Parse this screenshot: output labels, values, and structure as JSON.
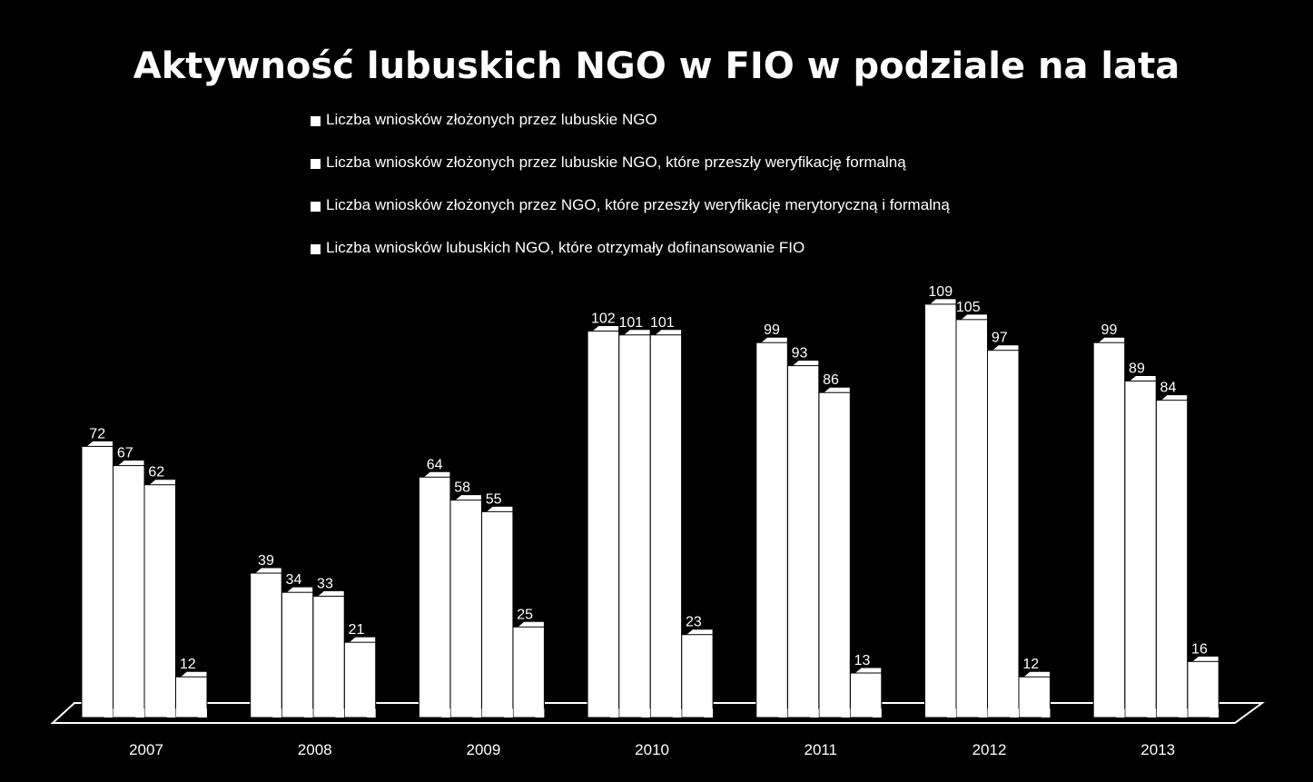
{
  "chart_data": {
    "type": "bar",
    "title": "Aktywność lubuskich NGO w FIO w podziale na lata",
    "categories": [
      "2007",
      "2008",
      "2009",
      "2010",
      "2011",
      "2012",
      "2013"
    ],
    "series": [
      {
        "name": "Liczba wniosków złożonych przez lubuskie NGO",
        "values": [
          72,
          39,
          64,
          102,
          99,
          109,
          99
        ]
      },
      {
        "name": "Liczba wniosków złożonych przez lubuskie NGO, które przeszły weryfikację formalną",
        "values": [
          67,
          34,
          58,
          101,
          93,
          105,
          89
        ]
      },
      {
        "name": "Liczba wniosków złożonych przez NGO, które przeszły weryfikację merytoryczną i formalną",
        "values": [
          62,
          33,
          55,
          101,
          86,
          97,
          84
        ]
      },
      {
        "name": "Liczba wniosków lubuskich NGO, które otrzymały dofinansowanie FIO",
        "values": [
          12,
          21,
          25,
          23,
          13,
          12,
          16
        ]
      }
    ],
    "ylim": [
      0,
      110
    ],
    "grid": false,
    "legend": "top",
    "three_d": true,
    "colors": {
      "bar": "#ffffff",
      "background": "#000000",
      "text": "#ffffff",
      "edge": "#000000"
    }
  }
}
